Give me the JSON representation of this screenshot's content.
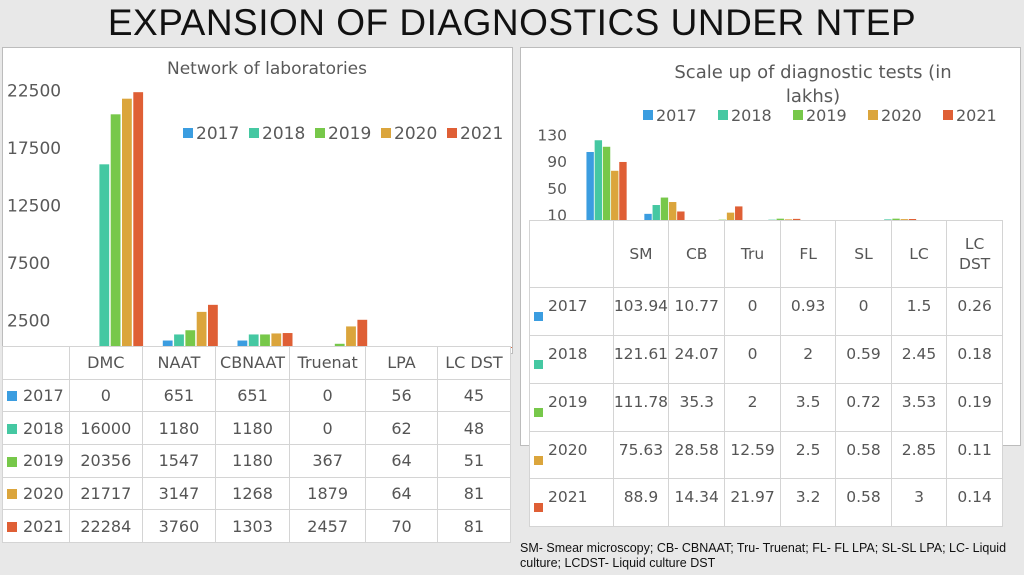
{
  "slide_title": "EXPANSION OF DIAGNOSTICS UNDER NTEP",
  "colors": [
    "#3b9de0",
    "#45c8a2",
    "#77c84a",
    "#dba53c",
    "#df5f35"
  ],
  "chart_data": [
    {
      "type": "bar",
      "title": "Network of laboratories",
      "categories": [
        "DMC",
        "NAAT",
        "CBNAAT",
        "Truenat",
        "LPA",
        "LC DST"
      ],
      "series": [
        {
          "name": "2017",
          "values": [
            0,
            651,
            651,
            0,
            56,
            45
          ]
        },
        {
          "name": "2018",
          "values": [
            16000,
            1180,
            1180,
            0,
            62,
            48
          ]
        },
        {
          "name": "2019",
          "values": [
            20356,
            1547,
            1180,
            367,
            64,
            51
          ]
        },
        {
          "name": "2020",
          "values": [
            21717,
            3147,
            1268,
            1879,
            64,
            81
          ]
        },
        {
          "name": "2021",
          "values": [
            22284,
            3760,
            1303,
            2457,
            70,
            81
          ]
        }
      ],
      "yticks": [
        "2500",
        "7500",
        "12500",
        "17500",
        "22500"
      ],
      "legend": "top-right",
      "data_table": true
    },
    {
      "type": "bar",
      "title": "Scale up of diagnostic tests (in lakhs)",
      "categories": [
        "SM",
        "CB",
        "Tru",
        "FL",
        "SL",
        "LC",
        "LC DST"
      ],
      "series": [
        {
          "name": "2017",
          "values": [
            103.94,
            10.77,
            0,
            0.93,
            0,
            1.5,
            0.26
          ]
        },
        {
          "name": "2018",
          "values": [
            121.61,
            24.07,
            0,
            2,
            0.59,
            2.45,
            0.18
          ]
        },
        {
          "name": "2019",
          "values": [
            111.78,
            35.3,
            2,
            3.5,
            0.72,
            3.53,
            0.19
          ]
        },
        {
          "name": "2020",
          "values": [
            75.63,
            28.58,
            12.59,
            2.5,
            0.58,
            2.85,
            0.11
          ]
        },
        {
          "name": "2021",
          "values": [
            88.9,
            14.34,
            21.97,
            3.2,
            0.58,
            3,
            0.14
          ]
        }
      ],
      "yticks": [
        "10",
        "50",
        "90",
        "130"
      ],
      "legend": "top",
      "data_table": true
    }
  ],
  "footnote": "SM- Smear microscopy; CB- CBNAAT; Tru- Truenat; FL- FL LPA; SL-SL LPA; LC- Liquid culture; LCDST- Liquid culture DST"
}
